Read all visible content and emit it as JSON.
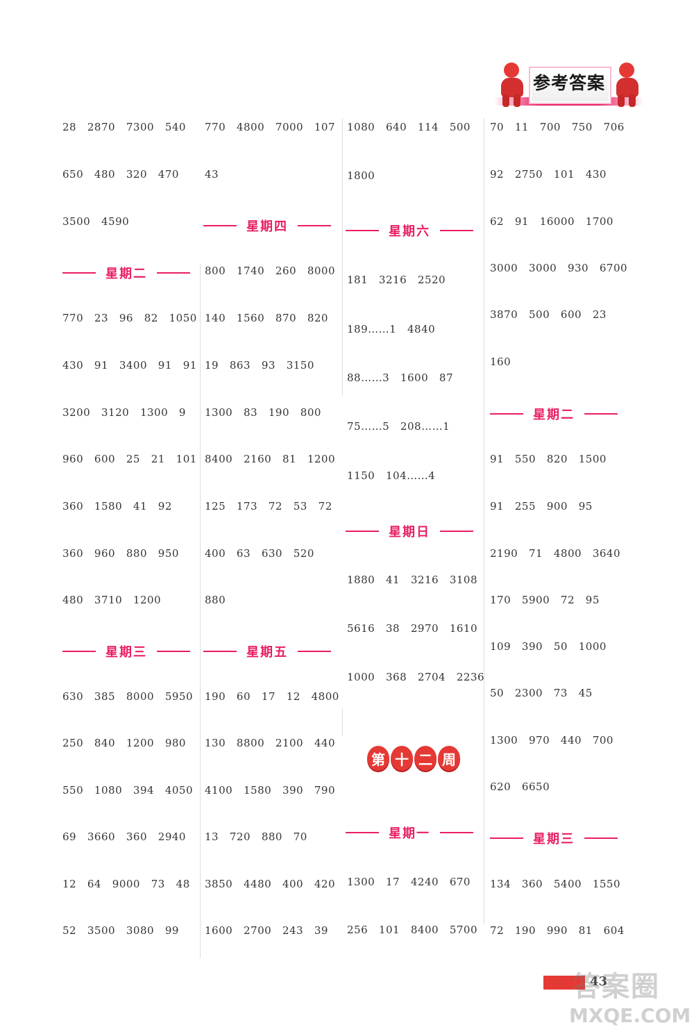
{
  "header": {
    "title": "参考答案"
  },
  "columns": [
    [
      {
        "t": "line",
        "text": "28   2870   7300   540"
      },
      {
        "t": "line",
        "text": "650   480   320   470"
      },
      {
        "t": "line",
        "text": "3500   4590"
      },
      {
        "t": "day",
        "text": "星期二"
      },
      {
        "t": "line",
        "text": "770   23   96   82   1050"
      },
      {
        "t": "line",
        "text": "430   91   3400   91   91"
      },
      {
        "t": "line",
        "text": "3200   3120   1300   9"
      },
      {
        "t": "line",
        "text": "960   600   25   21   101"
      },
      {
        "t": "line",
        "text": "360   1580   41   92"
      },
      {
        "t": "line",
        "text": "360   960   880   950"
      },
      {
        "t": "line",
        "text": "480   3710   1200"
      },
      {
        "t": "day",
        "text": "星期三"
      },
      {
        "t": "line",
        "text": "630   385   8000   5950"
      },
      {
        "t": "line",
        "text": "250   840   1200   980"
      },
      {
        "t": "line",
        "text": "550   1080   394   4050"
      },
      {
        "t": "line",
        "text": "69   3660   360   2940"
      },
      {
        "t": "line",
        "text": "12   64   9000   73   48"
      },
      {
        "t": "line",
        "text": "52   3500   3080   99"
      }
    ],
    [
      {
        "t": "line",
        "text": "770   4800   7000   107"
      },
      {
        "t": "line",
        "text": "43"
      },
      {
        "t": "day",
        "text": "星期四"
      },
      {
        "t": "line",
        "text": "800   1740   260   8000"
      },
      {
        "t": "line",
        "text": "140   1560   870   820"
      },
      {
        "t": "line",
        "text": "19   863   93   3150"
      },
      {
        "t": "line",
        "text": "1300   83   190   800"
      },
      {
        "t": "line",
        "text": "8400   2160   81   1200"
      },
      {
        "t": "line",
        "text": "125   173   72   53   72"
      },
      {
        "t": "line",
        "text": "400   63   630   520"
      },
      {
        "t": "line",
        "text": "880"
      },
      {
        "t": "day",
        "text": "星期五"
      },
      {
        "t": "line",
        "text": "190   60   17   12   4800"
      },
      {
        "t": "line",
        "text": "130   8800   2100   440"
      },
      {
        "t": "line",
        "text": "4100   1580   390   790"
      },
      {
        "t": "line",
        "text": "13   720   880   70"
      },
      {
        "t": "line",
        "text": "3850   4480   400   420"
      },
      {
        "t": "line",
        "text": "1600   2700   243   39"
      }
    ],
    [
      {
        "t": "line",
        "text": "1080   640   114   500"
      },
      {
        "t": "line",
        "text": "1800"
      },
      {
        "t": "day",
        "text": "星期六"
      },
      {
        "t": "line",
        "text": "181   3216   2520"
      },
      {
        "t": "line",
        "text": "189……1   4840"
      },
      {
        "t": "line",
        "text": "88……3   1600   87"
      },
      {
        "t": "line",
        "text": "75……5   208……1"
      },
      {
        "t": "line",
        "text": "1150   104……4"
      },
      {
        "t": "day",
        "text": "星期日"
      },
      {
        "t": "line",
        "text": "1880   41   3216   3108"
      },
      {
        "t": "line",
        "text": "5616   38   2970   1610"
      },
      {
        "t": "line",
        "text": "1000   368   2704   2236"
      },
      {
        "t": "day",
        "text": "星期一"
      },
      {
        "t": "line",
        "text": "1300   17   4240   670"
      },
      {
        "t": "line",
        "text": "256   101   8400   5700"
      }
    ],
    [
      {
        "t": "line",
        "text": "70   11   700   750   706"
      },
      {
        "t": "line",
        "text": "92   2750   101   430"
      },
      {
        "t": "line",
        "text": "62   91   16000   1700"
      },
      {
        "t": "line",
        "text": "3000   3000   930   6700"
      },
      {
        "t": "line",
        "text": "3870   500   600   23"
      },
      {
        "t": "line",
        "text": "160"
      },
      {
        "t": "day",
        "text": "星期二"
      },
      {
        "t": "line",
        "text": "91   550   820   1500"
      },
      {
        "t": "line",
        "text": "91   255   900   95"
      },
      {
        "t": "line",
        "text": "2190   71   4800   3640"
      },
      {
        "t": "line",
        "text": "170   5900   72   95"
      },
      {
        "t": "line",
        "text": "109   390   50   1000"
      },
      {
        "t": "line",
        "text": "50   2300   73   45"
      },
      {
        "t": "line",
        "text": "1300   970   440   700"
      },
      {
        "t": "line",
        "text": "620   6650"
      },
      {
        "t": "day",
        "text": "星期三"
      },
      {
        "t": "line",
        "text": "134   360   5400   1550"
      },
      {
        "t": "line",
        "text": "72   190   990   81   604"
      }
    ]
  ],
  "week_badge": [
    "第",
    "十",
    "二",
    "周"
  ],
  "footer": {
    "page": "43"
  },
  "watermark": {
    "logo": "答案圈",
    "url": "MXQE.COM"
  },
  "colors": {
    "accent": "#e91e63",
    "badge": "#e53935"
  }
}
